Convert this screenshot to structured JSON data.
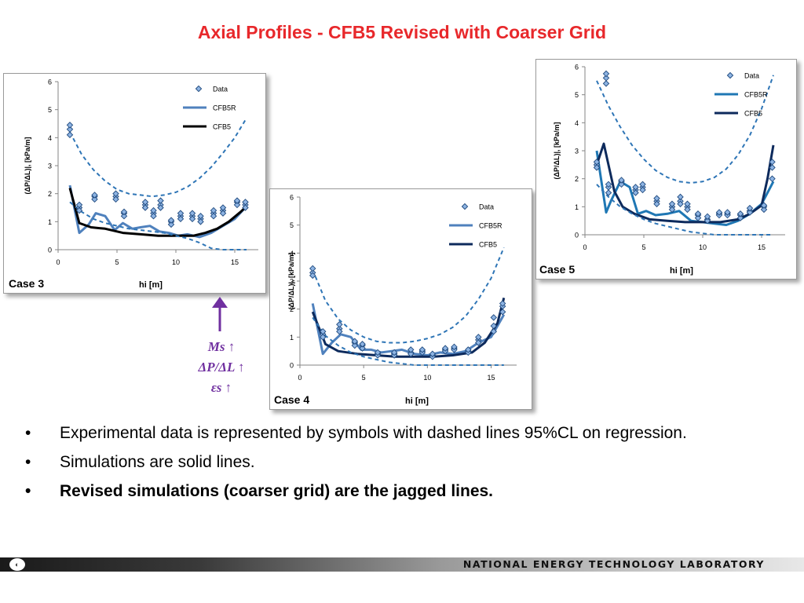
{
  "slide": {
    "title": "Axial Profiles - CFB5 Revised with Coarser Grid",
    "title_color": "#e8282b"
  },
  "trend_annotation": {
    "arrow": "up-arrow",
    "color": "#7030a0",
    "lines": [
      "Ms ↑",
      "ΔP/ΔL ↑",
      "εs ↑"
    ]
  },
  "bullets": [
    {
      "text": "Experimental data is represented by symbols with dashed lines 95%CL on regression.",
      "bold": false
    },
    {
      "text": "Simulations are solid lines.",
      "bold": false
    },
    {
      "text": "Revised simulations (coarser grid) are the jagged lines.",
      "bold": true
    }
  ],
  "bullet_glyph": "•",
  "footer": {
    "text": "NATIONAL ENERGY TECHNOLOGY LABORATORY",
    "logo": "netl-logo-icon"
  },
  "chart_data": [
    {
      "type": "line",
      "case_label": "Case 3",
      "xlabel": "hi [m]",
      "ylabel": "(ΔP/ΔL)|, [kPa/m]",
      "xlim": [
        0,
        17
      ],
      "ylim": [
        0,
        6
      ],
      "xticks": [
        0,
        5,
        10,
        15
      ],
      "yticks": [
        0,
        1,
        2,
        3,
        4,
        5,
        6
      ],
      "legend": "top-right",
      "legend_entries": [
        "Data",
        "CFB5R",
        "CFB5"
      ],
      "data_points": {
        "x": [
          1.0,
          1.8,
          3.1,
          4.9,
          5.6,
          7.4,
          8.1,
          8.7,
          9.6,
          10.4,
          11.4,
          12.1,
          13.2,
          14.0,
          15.2,
          15.9
        ],
        "y_sets": [
          [
            4.3,
            1.5,
            1.9,
            1.9,
            1.3,
            1.6,
            1.3,
            1.6,
            1.0,
            1.2,
            1.2,
            1.1,
            1.3,
            1.4,
            1.7,
            1.6
          ],
          [
            4.1,
            1.4,
            1.8,
            1.8,
            1.2,
            1.5,
            1.2,
            1.5,
            0.9,
            1.1,
            1.1,
            1.0,
            1.2,
            1.3,
            1.6,
            1.5
          ],
          [
            4.45,
            1.6,
            1.95,
            2.0,
            1.35,
            1.7,
            1.4,
            1.75,
            1.05,
            1.3,
            1.3,
            1.2,
            1.4,
            1.5,
            1.75,
            1.7
          ]
        ]
      },
      "series": [
        {
          "name": "Data",
          "style": "diamond",
          "color": "#4f81bd"
        },
        {
          "name": "CFB5R",
          "color": "#4f81bd",
          "x": [
            1.0,
            1.8,
            2.6,
            3.2,
            4.0,
            4.8,
            5.5,
            6.3,
            7.0,
            7.8,
            8.6,
            9.4,
            10.2,
            11.0,
            12.0,
            13.0,
            14.0,
            15.0,
            16.0
          ],
          "y": [
            2.3,
            0.6,
            0.9,
            1.3,
            1.2,
            0.7,
            0.95,
            0.75,
            0.8,
            0.85,
            0.65,
            0.6,
            0.5,
            0.55,
            0.45,
            0.6,
            0.85,
            1.1,
            1.55
          ]
        },
        {
          "name": "CFB5",
          "color": "#000000",
          "x": [
            1.0,
            1.8,
            2.8,
            4.0,
            5.5,
            7.0,
            8.5,
            10.0,
            11.5,
            12.5,
            13.5,
            14.5,
            15.5,
            16.0
          ],
          "y": [
            2.2,
            0.95,
            0.8,
            0.75,
            0.6,
            0.55,
            0.5,
            0.5,
            0.5,
            0.6,
            0.75,
            1.0,
            1.35,
            1.55
          ]
        },
        {
          "name": "upper CL",
          "style": "dashed",
          "color": "#2e75b6",
          "x": [
            1.0,
            2.0,
            3.0,
            4.0,
            5.0,
            6.0,
            7.0,
            8.0,
            9.0,
            10.0,
            11.0,
            12.0,
            13.0,
            14.0,
            15.0,
            16.0
          ],
          "y": [
            4.2,
            3.4,
            2.85,
            2.45,
            2.15,
            2.0,
            1.95,
            1.9,
            1.95,
            2.05,
            2.25,
            2.55,
            2.95,
            3.45,
            4.0,
            4.7
          ]
        },
        {
          "name": "lower CL",
          "style": "dashed",
          "color": "#2e75b6",
          "x": [
            1.0,
            2.0,
            3.0,
            4.0,
            5.0,
            6.0,
            7.0,
            8.0,
            9.0,
            10.0,
            11.0,
            12.0,
            13.0,
            14.0,
            15.0,
            16.0
          ],
          "y": [
            1.7,
            1.35,
            1.1,
            0.95,
            0.85,
            0.75,
            0.7,
            0.65,
            0.6,
            0.5,
            0.4,
            0.25,
            0.05,
            0.0,
            0.0,
            0.0
          ]
        }
      ]
    },
    {
      "type": "line",
      "case_label": "Case 4",
      "xlabel": "hi [m]",
      "ylabel": "(ΔP/ΔL)|, [kPa/m]",
      "xlim": [
        0,
        17
      ],
      "ylim": [
        0,
        6
      ],
      "xticks": [
        0,
        5,
        10,
        15
      ],
      "yticks": [
        0,
        1,
        2,
        3,
        4,
        5,
        6
      ],
      "legend": "top-right",
      "legend_entries": [
        "Data",
        "CFB5R",
        "CFB5"
      ],
      "data_points": {
        "x": [
          1.0,
          1.8,
          3.1,
          4.3,
          4.9,
          6.1,
          7.4,
          8.7,
          9.6,
          10.4,
          11.4,
          12.1,
          13.2,
          14.0,
          15.2,
          15.9
        ],
        "y_sets": [
          [
            3.3,
            1.1,
            1.3,
            0.8,
            0.7,
            0.4,
            0.4,
            0.45,
            0.5,
            0.35,
            0.55,
            0.6,
            0.5,
            0.9,
            1.4,
            2.1
          ],
          [
            3.2,
            1.0,
            1.2,
            0.7,
            0.6,
            0.35,
            0.35,
            0.4,
            0.45,
            0.3,
            0.5,
            0.55,
            0.45,
            0.8,
            1.2,
            1.9
          ],
          [
            3.45,
            1.2,
            1.45,
            0.85,
            0.75,
            0.45,
            0.45,
            0.55,
            0.55,
            0.4,
            0.6,
            0.65,
            0.55,
            1.0,
            1.7,
            2.2
          ]
        ]
      },
      "series": [
        {
          "name": "Data",
          "style": "diamond",
          "color": "#4f81bd"
        },
        {
          "name": "CFB5R",
          "color": "#4f81bd",
          "x": [
            1.0,
            1.8,
            2.5,
            3.2,
            4.0,
            4.8,
            5.6,
            6.4,
            7.2,
            8.0,
            9.0,
            10.0,
            11.0,
            12.0,
            13.0,
            14.0,
            15.0,
            16.0
          ],
          "y": [
            2.2,
            0.4,
            0.8,
            1.1,
            1.0,
            0.55,
            0.55,
            0.45,
            0.5,
            0.55,
            0.4,
            0.35,
            0.45,
            0.4,
            0.5,
            0.8,
            1.0,
            1.8
          ]
        },
        {
          "name": "CFB5",
          "color": "#0d2a5c",
          "x": [
            1.0,
            2.0,
            3.0,
            4.5,
            6.0,
            7.5,
            9.0,
            10.5,
            12.0,
            13.5,
            14.5,
            15.5,
            16.0
          ],
          "y": [
            1.9,
            0.75,
            0.5,
            0.4,
            0.35,
            0.3,
            0.3,
            0.3,
            0.35,
            0.45,
            0.8,
            1.5,
            2.4
          ]
        },
        {
          "name": "upper CL",
          "style": "dashed",
          "color": "#2e75b6",
          "x": [
            1.0,
            2.0,
            3.0,
            4.0,
            5.0,
            6.0,
            7.0,
            8.0,
            9.0,
            10.0,
            11.0,
            12.0,
            13.0,
            14.0,
            15.0,
            16.0
          ],
          "y": [
            3.4,
            2.3,
            1.65,
            1.25,
            1.0,
            0.85,
            0.8,
            0.8,
            0.85,
            0.95,
            1.1,
            1.35,
            1.75,
            2.35,
            3.1,
            4.2
          ]
        },
        {
          "name": "lower CL",
          "style": "dashed",
          "color": "#2e75b6",
          "x": [
            1.0,
            2.0,
            3.0,
            4.0,
            5.0,
            6.0,
            7.0,
            8.0,
            9.0,
            10.0,
            11.0,
            12.0,
            13.0,
            14.0,
            15.0,
            16.0
          ],
          "y": [
            1.7,
            1.05,
            0.7,
            0.45,
            0.3,
            0.2,
            0.1,
            0.05,
            0.0,
            0.0,
            0.0,
            0.0,
            0.0,
            0.0,
            0.0,
            0.0
          ]
        }
      ]
    },
    {
      "type": "line",
      "case_label": "Case 5",
      "xlabel": "hi [m]",
      "ylabel": "(ΔP/ΔL)|, [kPa/m]",
      "xlim": [
        0,
        17
      ],
      "ylim": [
        0,
        6
      ],
      "xticks": [
        0,
        5,
        10,
        15
      ],
      "yticks": [
        0,
        1,
        2,
        3,
        4,
        5,
        6
      ],
      "legend": "top-right",
      "legend_entries": [
        "Data",
        "CFB5R",
        "CFB5"
      ],
      "data_points": {
        "x": [
          1.0,
          1.8,
          2.0,
          3.1,
          4.3,
          4.9,
          6.1,
          7.4,
          8.1,
          8.7,
          9.6,
          10.4,
          11.4,
          12.1,
          13.2,
          14.0,
          15.2,
          15.9
        ],
        "y_sets": [
          [
            2.5,
            5.6,
            1.7,
            1.9,
            1.6,
            1.7,
            1.2,
            1.0,
            1.2,
            1.0,
            0.7,
            0.55,
            0.75,
            0.75,
            0.7,
            0.85,
            1.0,
            2.4
          ],
          [
            2.4,
            5.4,
            1.5,
            1.8,
            1.5,
            1.6,
            1.1,
            0.9,
            1.1,
            0.9,
            0.6,
            0.5,
            0.7,
            0.7,
            0.6,
            0.8,
            0.9,
            2.0
          ],
          [
            2.6,
            5.75,
            1.8,
            1.95,
            1.7,
            1.8,
            1.3,
            1.1,
            1.35,
            1.1,
            0.75,
            0.65,
            0.8,
            0.8,
            0.75,
            0.95,
            1.05,
            2.6
          ]
        ]
      },
      "series": [
        {
          "name": "Data",
          "style": "diamond",
          "color": "#4f81bd"
        },
        {
          "name": "CFB5R",
          "color": "#1f77b4",
          "x": [
            1.0,
            1.8,
            2.2,
            3.0,
            3.8,
            4.5,
            5.2,
            6.0,
            7.0,
            8.0,
            9.0,
            10.0,
            11.0,
            12.0,
            13.0,
            14.0,
            15.0,
            16.0
          ],
          "y": [
            3.0,
            0.8,
            1.2,
            1.9,
            1.7,
            0.75,
            0.85,
            0.7,
            0.75,
            0.85,
            0.5,
            0.45,
            0.4,
            0.35,
            0.5,
            0.75,
            1.1,
            1.9
          ]
        },
        {
          "name": "CFB5",
          "color": "#0d2a5c",
          "x": [
            1.0,
            1.6,
            2.5,
            3.2,
            4.2,
            5.5,
            7.0,
            8.5,
            10.0,
            11.5,
            13.0,
            14.0,
            15.0,
            15.5,
            16.0
          ],
          "y": [
            2.5,
            3.25,
            1.55,
            1.0,
            0.75,
            0.55,
            0.5,
            0.45,
            0.45,
            0.45,
            0.55,
            0.75,
            1.05,
            2.0,
            3.2
          ]
        },
        {
          "name": "upper CL",
          "style": "dashed",
          "color": "#2e75b6",
          "x": [
            1.0,
            2.0,
            3.0,
            4.0,
            5.0,
            6.0,
            7.0,
            8.0,
            9.0,
            10.0,
            11.0,
            12.0,
            13.0,
            14.0,
            15.0,
            16.0
          ],
          "y": [
            5.5,
            4.6,
            3.85,
            3.2,
            2.7,
            2.3,
            2.05,
            1.9,
            1.85,
            1.9,
            2.05,
            2.35,
            2.85,
            3.55,
            4.5,
            5.7
          ]
        },
        {
          "name": "lower CL",
          "style": "dashed",
          "color": "#2e75b6",
          "x": [
            1.0,
            2.0,
            3.0,
            4.0,
            5.0,
            6.0,
            7.0,
            8.0,
            9.0,
            10.0,
            11.0,
            12.0,
            13.0,
            14.0,
            15.0,
            16.0
          ],
          "y": [
            1.8,
            1.35,
            1.0,
            0.75,
            0.55,
            0.4,
            0.3,
            0.2,
            0.1,
            0.05,
            0.0,
            0.0,
            0.0,
            0.0,
            0.0,
            0.0
          ]
        }
      ]
    }
  ]
}
